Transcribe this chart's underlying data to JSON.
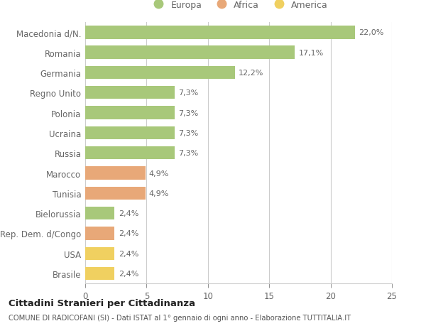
{
  "categories": [
    "Macedonia d/N.",
    "Romania",
    "Germania",
    "Regno Unito",
    "Polonia",
    "Ucraina",
    "Russia",
    "Marocco",
    "Tunisia",
    "Bielorussia",
    "Rep. Dem. d/Congo",
    "USA",
    "Brasile"
  ],
  "values": [
    22.0,
    17.1,
    12.2,
    7.3,
    7.3,
    7.3,
    7.3,
    4.9,
    4.9,
    2.4,
    2.4,
    2.4,
    2.4
  ],
  "bar_colors": [
    "#a8c87a",
    "#a8c87a",
    "#a8c87a",
    "#a8c87a",
    "#a8c87a",
    "#a8c87a",
    "#a8c87a",
    "#e8a878",
    "#e8a878",
    "#a8c87a",
    "#e8a878",
    "#f0d060",
    "#f0d060"
  ],
  "labels": [
    "22,0%",
    "17,1%",
    "12,2%",
    "7,3%",
    "7,3%",
    "7,3%",
    "7,3%",
    "4,9%",
    "4,9%",
    "2,4%",
    "2,4%",
    "2,4%",
    "2,4%"
  ],
  "legend_labels": [
    "Europa",
    "Africa",
    "America"
  ],
  "legend_colors": [
    "#a8c87a",
    "#e8a878",
    "#f0d060"
  ],
  "title": "Cittadini Stranieri per Cittadinanza",
  "subtitle": "COMUNE DI RADICOFANI (SI) - Dati ISTAT al 1° gennaio di ogni anno - Elaborazione TUTTITALIA.IT",
  "xlim": [
    0,
    25
  ],
  "xticks": [
    0,
    5,
    10,
    15,
    20,
    25
  ],
  "background_color": "#ffffff",
  "grid_color": "#cccccc",
  "label_color": "#666666",
  "bar_height": 0.65
}
